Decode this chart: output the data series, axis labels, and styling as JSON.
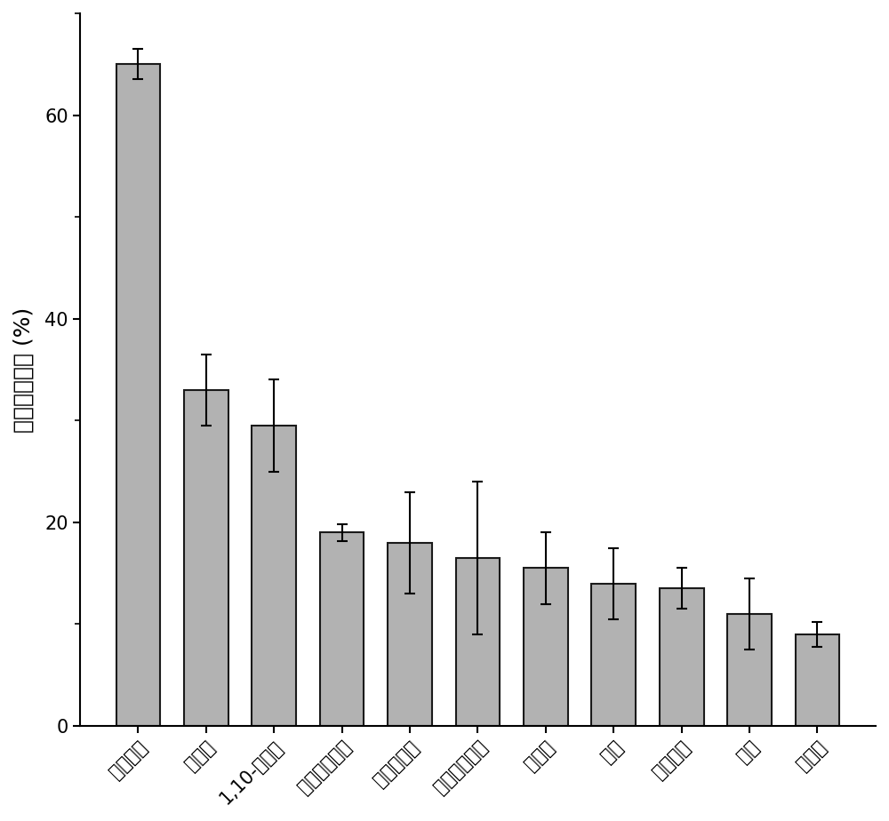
{
  "categories": [
    "氟鄢那酸",
    "山奈酚",
    "1,10-菲咧啤",
    "卡利索普罗多",
    "穿心莲内酯",
    "苯甲酸地那锇",
    "橙皮素",
    "奕宁",
    "青蒿璐酯",
    "氯堂",
    "柚皮素"
  ],
  "values": [
    65.0,
    33.0,
    29.5,
    19.0,
    18.0,
    16.5,
    15.5,
    14.0,
    13.5,
    11.0,
    9.0
  ],
  "errors": [
    1.5,
    3.5,
    4.5,
    0.8,
    5.0,
    7.5,
    3.5,
    3.5,
    2.0,
    3.5,
    1.2
  ],
  "bar_color": "#b2b2b2",
  "bar_edgecolor": "#1a1a1a",
  "ylabel": "细胞舒张程度 (%)",
  "ylim": [
    0,
    70
  ],
  "yticks": [
    0,
    20,
    40,
    60
  ],
  "background_color": "#ffffff",
  "bar_width": 0.65,
  "capsize": 4,
  "linewidth": 1.5,
  "ylabel_fontsize": 18,
  "tick_fontsize": 15,
  "xtick_fontsize": 15
}
